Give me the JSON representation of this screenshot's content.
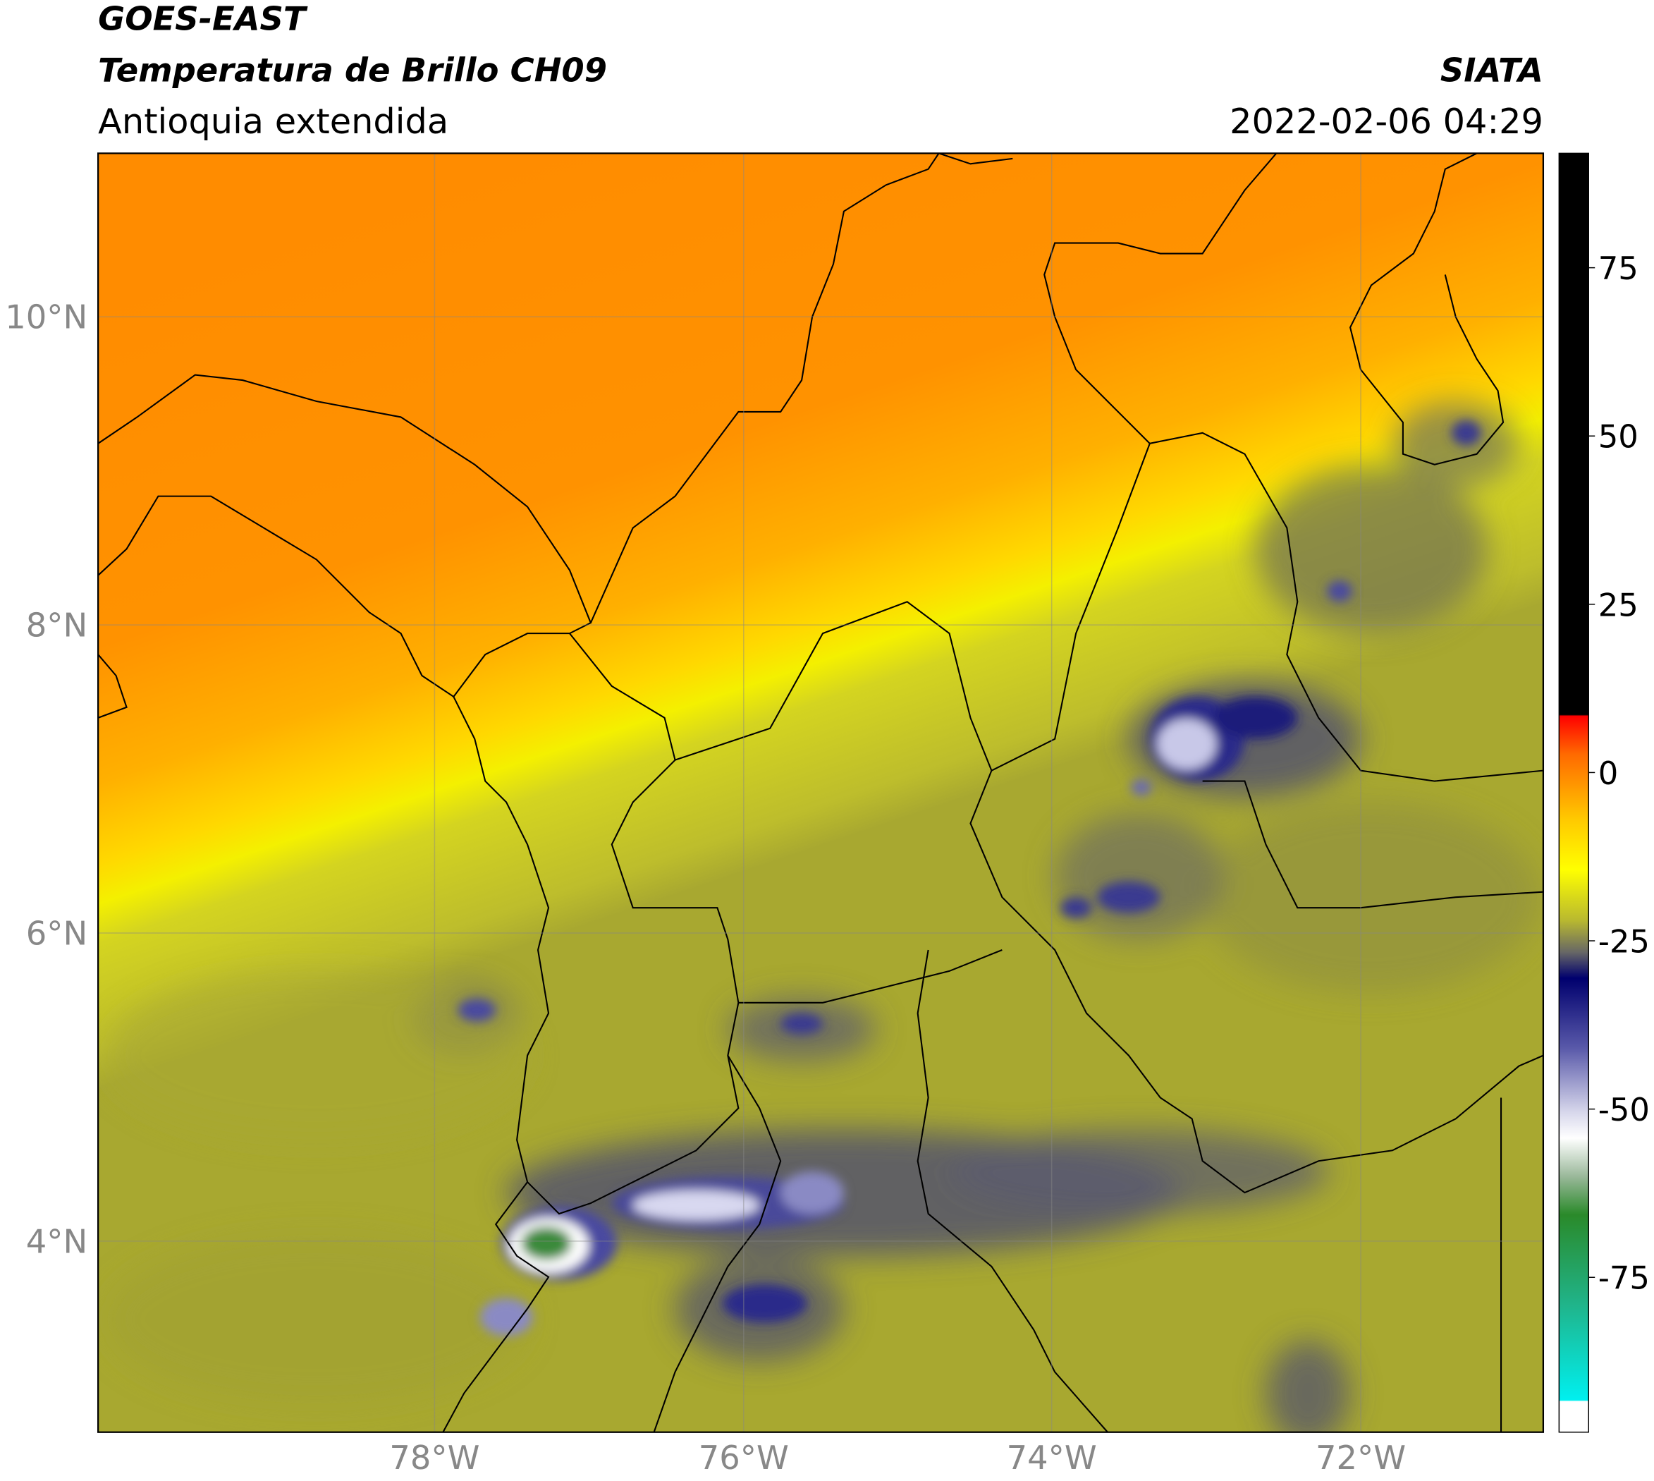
{
  "header": {
    "satellite": "GOES-EAST",
    "product": "Temperatura de Brillo CH09",
    "region": "Antioquia extendida",
    "agency": "SIATA",
    "datetime": "2022-02-06 04:29"
  },
  "map": {
    "lat_labels": [
      "10°N",
      "8°N",
      "6°N",
      "4°N"
    ],
    "lon_labels": [
      "78°W",
      "76°W",
      "74°W",
      "72°W"
    ]
  },
  "colorbar": {
    "lim": [
      -98,
      92
    ],
    "ticks": [
      75,
      50,
      25,
      0,
      -25,
      -50,
      -75
    ]
  }
}
